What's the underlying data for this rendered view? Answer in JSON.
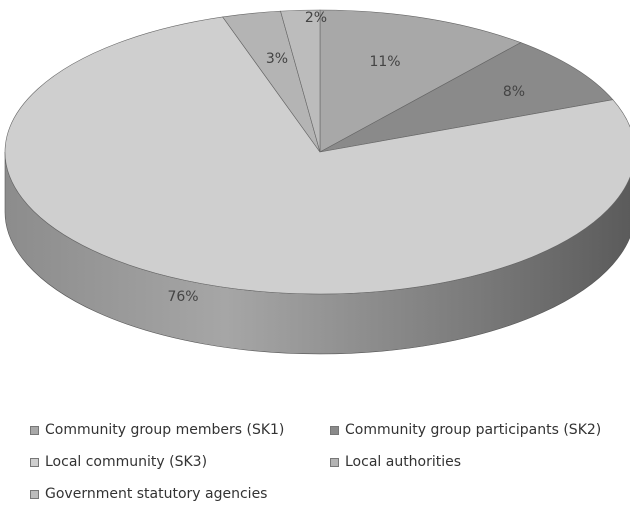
{
  "chart_data": {
    "type": "pie",
    "title": "",
    "categories": [
      "Community group members (SK1)",
      "Community group participants (SK2)",
      "Local community (SK3)",
      "Local authorities",
      "Government statutory agencies"
    ],
    "values": [
      11,
      8,
      76,
      3,
      2
    ],
    "value_labels": [
      "11%",
      "8%",
      "76%",
      "3%",
      "2%"
    ],
    "colors": [
      "#a8a8a8",
      "#8a8a8a",
      "#cfcfcf",
      "#b4b4b4",
      "#bcbcbc"
    ],
    "legend_position": "bottom",
    "style": "3d-pie"
  }
}
